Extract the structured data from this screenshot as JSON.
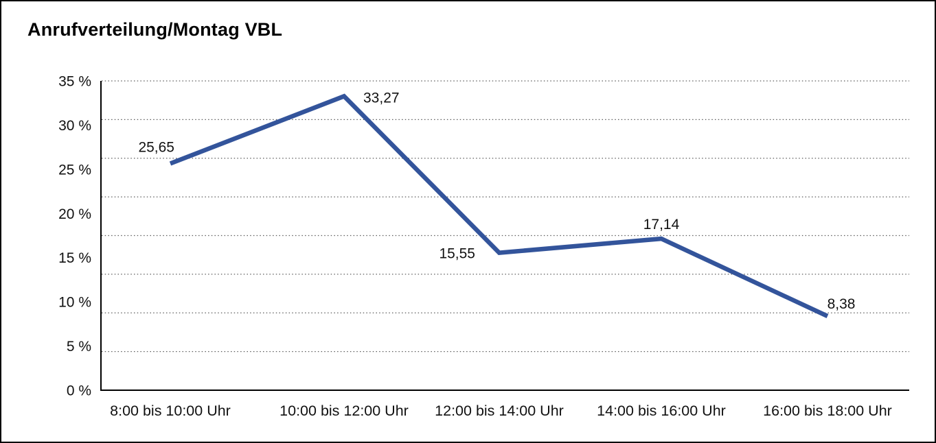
{
  "title": "Anrufverteilung/Montag VBL",
  "chart_data": {
    "type": "line",
    "title": "Anrufverteilung/Montag VBL",
    "categories": [
      "8:00 bis 10:00 Uhr",
      "10:00 bis 12:00 Uhr",
      "12:00 bis 14:00 Uhr",
      "14:00 bis 16:00 Uhr",
      "16:00 bis 18:00 Uhr"
    ],
    "values": [
      25.65,
      33.27,
      15.55,
      17.14,
      8.38
    ],
    "value_labels": [
      "25,65",
      "33,27",
      "15,55",
      "17,14",
      "8,38"
    ],
    "y_ticks": [
      {
        "value": 35,
        "label": "35 %"
      },
      {
        "value": 30,
        "label": "30 %"
      },
      {
        "value": 25,
        "label": "25 %"
      },
      {
        "value": 20,
        "label": "20 %"
      },
      {
        "value": 15,
        "label": "15 %"
      },
      {
        "value": 10,
        "label": "10 %"
      },
      {
        "value": 5,
        "label": "5 %"
      },
      {
        "value": 0,
        "label": "0 %"
      }
    ],
    "ylim": [
      0,
      35
    ],
    "xlabel": "",
    "ylabel": "",
    "grid": true,
    "grid_intervals": 8,
    "legend_position": "none",
    "series_name": "Montag VBL",
    "line_color": "#33549B",
    "axis_color": "#000000",
    "gridline_color": "#5a5a5a",
    "text_color": "#111111"
  }
}
